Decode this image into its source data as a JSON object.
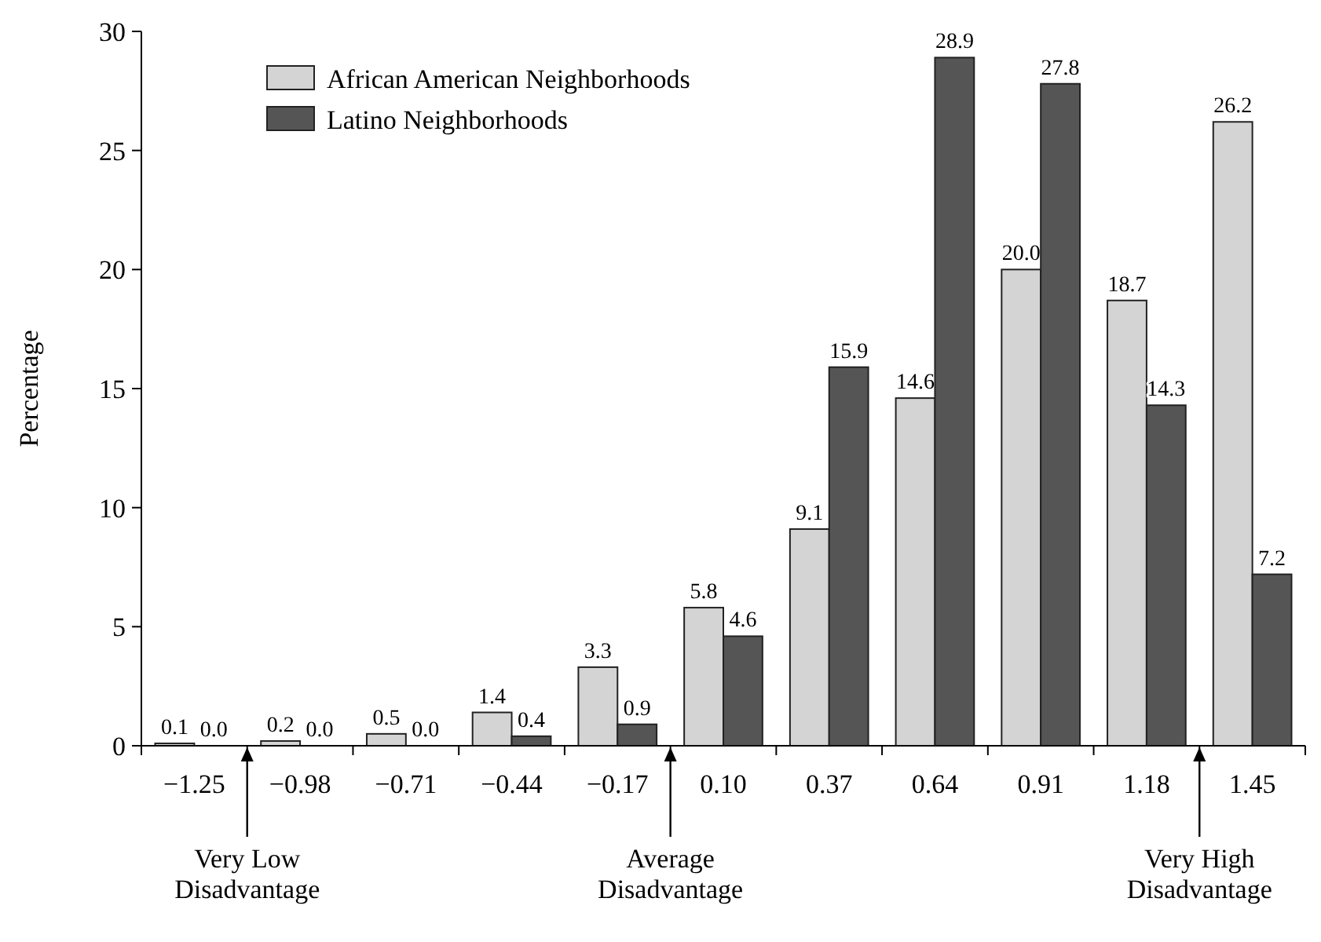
{
  "chart_data": {
    "type": "bar",
    "ylabel": "Percentage",
    "categories": [
      "−1.25",
      "−0.98",
      "−0.71",
      "−0.44",
      "−0.17",
      "0.10",
      "0.37",
      "0.64",
      "0.91",
      "1.18",
      "1.45"
    ],
    "series": [
      {
        "name": "African American Neighborhoods",
        "color": "#d4d4d4",
        "values": [
          0.1,
          0.2,
          0.5,
          1.4,
          3.3,
          5.8,
          9.1,
          14.6,
          20.0,
          18.7,
          26.2
        ],
        "value_labels": [
          "0.1",
          "0.2",
          "0.5",
          "1.4",
          "3.3",
          "5.8",
          "9.1",
          "14.6",
          "20.0",
          "18.7",
          "26.2"
        ]
      },
      {
        "name": "Latino Neighborhoods",
        "color": "#555555",
        "values": [
          0.0,
          0.0,
          0.0,
          0.4,
          0.9,
          4.6,
          15.9,
          28.9,
          27.8,
          14.3,
          7.2
        ],
        "value_labels": [
          "0.0",
          "0.0",
          "0.0",
          "0.4",
          "0.9",
          "4.6",
          "15.9",
          "28.9",
          "27.8",
          "14.3",
          "7.2"
        ]
      }
    ],
    "ylim": [
      0,
      30
    ],
    "yticks": [
      0,
      5,
      10,
      15,
      20,
      25,
      30
    ],
    "grid": false,
    "legend": "top left",
    "annotations": [
      "Very Low Disadvantage",
      "Average Disadvantage",
      "Very High Disadvantage"
    ]
  }
}
